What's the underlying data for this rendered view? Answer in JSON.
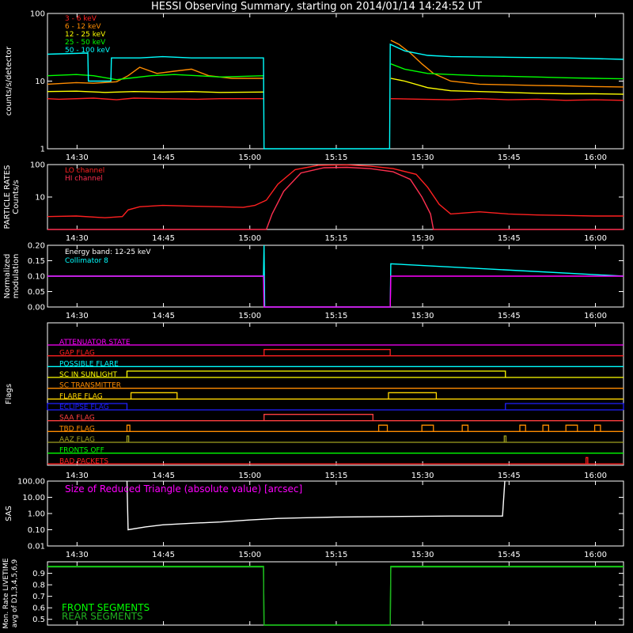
{
  "title": "HESSI Observing Summary, starting on 2014/01/14 14:24:52 UT",
  "time_axis": {
    "start_min": 0,
    "end_min": 100,
    "tick_minutes": [
      5.13,
      20.13,
      35.13,
      50.13,
      65.13,
      80.13,
      95.13
    ],
    "tick_labels": [
      "14:30",
      "14:45",
      "15:00",
      "15:15",
      "15:30",
      "15:45",
      "16:00"
    ]
  },
  "colors": {
    "red": "#ff2020",
    "orange": "#ff8c00",
    "yellow": "#ffff00",
    "green": "#00ff00",
    "cyan": "#00ffff",
    "magenta": "#ff00ff",
    "white": "#ffffff",
    "blue": "#2020ff",
    "gold": "#ffd700",
    "olive": "#a0a020",
    "darkred": "#ff4040",
    "crimson": "#ff3050",
    "darkgreen": "#20b020"
  },
  "chart_data": [
    {
      "id": "count_rates",
      "type": "line",
      "ylabel": "counts/s/detector",
      "yscale": "log",
      "ylim": [
        1,
        100
      ],
      "ytick_values": [
        1,
        10,
        100
      ],
      "ytick_labels": [
        "1",
        "10",
        "100"
      ],
      "series": [
        {
          "name": "3 - 6 keV",
          "color": "#ff2020",
          "points": [
            [
              0,
              5.5
            ],
            [
              2,
              5.4
            ],
            [
              8,
              5.6
            ],
            [
              12,
              5.3
            ],
            [
              15,
              5.6
            ],
            [
              20,
              5.5
            ],
            [
              26,
              5.4
            ],
            [
              30,
              5.5
            ],
            [
              37.6,
              5.5
            ],
            [
              37.7,
              null
            ],
            [
              59.5,
              null
            ],
            [
              59.6,
              5.5
            ],
            [
              65,
              5.4
            ],
            [
              70,
              5.3
            ],
            [
              75,
              5.5
            ],
            [
              80,
              5.3
            ],
            [
              85,
              5.4
            ],
            [
              90,
              5.2
            ],
            [
              95,
              5.3
            ],
            [
              100,
              5.2
            ]
          ]
        },
        {
          "name": "6 - 12 keV",
          "color": "#ff8c00",
          "points": [
            [
              0,
              9
            ],
            [
              5,
              9.5
            ],
            [
              8,
              9.3
            ],
            [
              12,
              9.8
            ],
            [
              14,
              12
            ],
            [
              16,
              16
            ],
            [
              19,
              13
            ],
            [
              22,
              14
            ],
            [
              25,
              15
            ],
            [
              28,
              12
            ],
            [
              32,
              11
            ],
            [
              37.6,
              11
            ],
            [
              37.7,
              null
            ],
            [
              59.5,
              null
            ],
            [
              59.6,
              40
            ],
            [
              61,
              35
            ],
            [
              63,
              26
            ],
            [
              65,
              18
            ],
            [
              67,
              13
            ],
            [
              70,
              10
            ],
            [
              75,
              9
            ],
            [
              80,
              8.8
            ],
            [
              85,
              8.6
            ],
            [
              90,
              8.5
            ],
            [
              95,
              8.3
            ],
            [
              100,
              8.2
            ]
          ]
        },
        {
          "name": "12 - 25 keV",
          "color": "#ffff00",
          "points": [
            [
              0,
              7
            ],
            [
              5,
              7.1
            ],
            [
              10,
              6.8
            ],
            [
              15,
              7
            ],
            [
              20,
              6.9
            ],
            [
              25,
              7
            ],
            [
              30,
              6.8
            ],
            [
              37.6,
              6.9
            ],
            [
              37.7,
              null
            ],
            [
              59.5,
              null
            ],
            [
              59.6,
              11
            ],
            [
              62,
              10
            ],
            [
              66,
              8
            ],
            [
              70,
              7.2
            ],
            [
              75,
              7
            ],
            [
              80,
              6.8
            ],
            [
              85,
              6.6
            ],
            [
              90,
              6.5
            ],
            [
              95,
              6.5
            ],
            [
              100,
              6.4
            ]
          ]
        },
        {
          "name": "25 - 50 keV",
          "color": "#00ff00",
          "points": [
            [
              0,
              12
            ],
            [
              5,
              12.5
            ],
            [
              8,
              12
            ],
            [
              12,
              10.5
            ],
            [
              14,
              11
            ],
            [
              18,
              12
            ],
            [
              22,
              12.5
            ],
            [
              26,
              12
            ],
            [
              30,
              11.5
            ],
            [
              37.6,
              12
            ],
            [
              37.7,
              null
            ],
            [
              59.5,
              null
            ],
            [
              59.6,
              18
            ],
            [
              62,
              15
            ],
            [
              66,
              13
            ],
            [
              70,
              12.5
            ],
            [
              75,
              12
            ],
            [
              80,
              11.8
            ],
            [
              85,
              11.5
            ],
            [
              90,
              11.2
            ],
            [
              95,
              11
            ],
            [
              100,
              10.8
            ]
          ]
        },
        {
          "name": "50 - 100 keV",
          "color": "#00ffff",
          "points": [
            [
              0,
              25
            ],
            [
              7,
              26
            ],
            [
              7.1,
              10
            ],
            [
              11,
              10
            ],
            [
              11.1,
              22
            ],
            [
              16,
              22
            ],
            [
              20,
              23
            ],
            [
              25,
              22
            ],
            [
              30,
              22
            ],
            [
              37.5,
              22
            ],
            [
              37.6,
              1
            ],
            [
              59.4,
              1
            ],
            [
              59.5,
              35
            ],
            [
              62,
              28
            ],
            [
              66,
              24
            ],
            [
              70,
              23
            ],
            [
              80,
              22.5
            ],
            [
              90,
              22
            ],
            [
              100,
              21
            ]
          ]
        }
      ]
    },
    {
      "id": "particle_rates",
      "type": "line",
      "ylabel": "PARTICLE RATES Counts/s",
      "yscale": "log",
      "ylim": [
        1,
        100
      ],
      "ytick_values": [
        10,
        100
      ],
      "ytick_labels": [
        "10",
        "100"
      ],
      "series": [
        {
          "name": "LO channel",
          "color": "#ff2020",
          "points": [
            [
              0,
              2.5
            ],
            [
              5,
              2.6
            ],
            [
              10,
              2.3
            ],
            [
              13,
              2.5
            ],
            [
              14,
              4
            ],
            [
              16,
              5
            ],
            [
              20,
              5.5
            ],
            [
              25,
              5.2
            ],
            [
              30,
              5
            ],
            [
              34,
              4.8
            ],
            [
              36,
              5.5
            ],
            [
              38,
              8
            ],
            [
              40,
              25
            ],
            [
              43,
              70
            ],
            [
              47,
              95
            ],
            [
              52,
              98
            ],
            [
              56,
              90
            ],
            [
              60,
              75
            ],
            [
              64,
              50
            ],
            [
              66,
              20
            ],
            [
              68,
              6
            ],
            [
              70,
              3
            ],
            [
              75,
              3.5
            ],
            [
              80,
              3
            ],
            [
              85,
              2.8
            ],
            [
              90,
              2.7
            ],
            [
              95,
              2.6
            ],
            [
              100,
              2.6
            ]
          ]
        },
        {
          "name": "HI channel",
          "color": "#ff3050",
          "points": [
            [
              0,
              1
            ],
            [
              10,
              1
            ],
            [
              30,
              1
            ],
            [
              38,
              1
            ],
            [
              39,
              3
            ],
            [
              41,
              15
            ],
            [
              44,
              55
            ],
            [
              48,
              80
            ],
            [
              52,
              82
            ],
            [
              56,
              75
            ],
            [
              60,
              60
            ],
            [
              63,
              35
            ],
            [
              65,
              10
            ],
            [
              66.5,
              3
            ],
            [
              67,
              1
            ],
            [
              100,
              1
            ]
          ]
        }
      ]
    },
    {
      "id": "modulation",
      "type": "line",
      "ylabel": "Normalized modulation",
      "ylim": [
        0,
        0.2
      ],
      "ytick_values": [
        0,
        0.05,
        0.1,
        0.15,
        0.2
      ],
      "ytick_labels": [
        "0.00",
        "0.05",
        "0.10",
        "0.15",
        "0.20"
      ],
      "annotations": [
        "Energy band: 12-25 keV",
        "Collimator 8"
      ],
      "series": [
        {
          "name": "Collimator 8",
          "color": "#00ffff",
          "points": [
            [
              0,
              0.1
            ],
            [
              37.5,
              0.1
            ],
            [
              37.6,
              0.2
            ],
            [
              37.7,
              0
            ],
            [
              59.5,
              0
            ],
            [
              59.6,
              0.14
            ],
            [
              100,
              0.1
            ]
          ]
        },
        {
          "name": "modulation",
          "color": "#ff00ff",
          "points": [
            [
              0,
              0.1
            ],
            [
              37.5,
              0.1
            ],
            [
              37.6,
              0
            ],
            [
              59.5,
              0
            ],
            [
              59.6,
              0.1
            ],
            [
              100,
              0.1
            ]
          ]
        }
      ]
    },
    {
      "id": "flags",
      "type": "line",
      "ylabel": "Flags",
      "flags": [
        {
          "name": "ATTENUATOR STATE",
          "color": "#ff00ff",
          "segments": []
        },
        {
          "name": "GAP FLAG",
          "color": "#ff2020",
          "segments": [
            [
              37.6,
              59.5
            ]
          ]
        },
        {
          "name": "POSSIBLE FLARE",
          "color": "#00ffff",
          "segments": []
        },
        {
          "name": "SC IN SUNLIGHT",
          "color": "#ffff00",
          "segments": [
            [
              13.8,
              79.5
            ]
          ]
        },
        {
          "name": "SC TRANSMITTER",
          "color": "#ff8c00",
          "segments": []
        },
        {
          "name": "FLARE FLAG",
          "color": "#ffd700",
          "segments": [
            [
              14.5,
              22.5
            ],
            [
              59.2,
              67.5
            ]
          ]
        },
        {
          "name": "ECLIPSE FLAG",
          "color": "#2020ff",
          "segments": [
            [
              0,
              13.8
            ],
            [
              79.5,
              100
            ]
          ]
        },
        {
          "name": "SAA FLAG",
          "color": "#ff4040",
          "segments": [
            [
              37.6,
              56.5
            ]
          ]
        },
        {
          "name": "TBD FLAG",
          "color": "#ff8c00",
          "segments": [
            [
              13.8,
              14.3
            ],
            [
              57.5,
              59
            ],
            [
              65,
              67
            ],
            [
              72,
              73
            ],
            [
              82,
              83
            ],
            [
              86,
              87
            ],
            [
              90,
              92
            ],
            [
              95,
              96
            ]
          ]
        },
        {
          "name": "AAZ FLAG",
          "color": "#a0a020",
          "segments": [
            [
              13.8,
              14.1
            ],
            [
              79.3,
              79.6
            ]
          ]
        },
        {
          "name": "FRONTS OFF",
          "color": "#00ff00",
          "segments": []
        },
        {
          "name": "BAD PACKETS",
          "color": "#ff2020",
          "segments": [
            [
              93.5,
              93.8
            ]
          ]
        }
      ]
    },
    {
      "id": "sas",
      "type": "line",
      "ylabel": "SAS",
      "yscale": "log",
      "ylim": [
        0.01,
        100
      ],
      "ytick_values": [
        0.01,
        0.1,
        1,
        10,
        100
      ],
      "ytick_labels": [
        "0.01",
        "0.10",
        "1.00",
        "10.00",
        "100.00"
      ],
      "annotations": [
        "Size of Reduced Triangle (absolute value) [arcsec]"
      ],
      "series": [
        {
          "name": "Size of Reduced Triangle",
          "color": "#ffffff",
          "points": [
            [
              13.8,
              100
            ],
            [
              14,
              0.1
            ],
            [
              17,
              0.15
            ],
            [
              20,
              0.2
            ],
            [
              25,
              0.25
            ],
            [
              30,
              0.3
            ],
            [
              35,
              0.4
            ],
            [
              40,
              0.5
            ],
            [
              45,
              0.55
            ],
            [
              50,
              0.6
            ],
            [
              60,
              0.65
            ],
            [
              70,
              0.7
            ],
            [
              79,
              0.7
            ],
            [
              79.4,
              100
            ]
          ]
        }
      ]
    },
    {
      "id": "livetime",
      "type": "line",
      "ylabel": "Mon. Rate LIVETIME avg of D1,3,4,5,6,9",
      "ylim": [
        0.45,
        1.0
      ],
      "ytick_values": [
        0.5,
        0.6,
        0.7,
        0.8,
        0.9
      ],
      "ytick_labels": [
        "0.5",
        "0.6",
        "0.7",
        "0.8",
        "0.9"
      ],
      "series": [
        {
          "name": "FRONT SEGMENTS",
          "color": "#00ff00",
          "points": [
            [
              0,
              0.96
            ],
            [
              37.5,
              0.96
            ],
            [
              37.6,
              0.45
            ],
            [
              59.5,
              0.45
            ],
            [
              59.6,
              0.96
            ],
            [
              100,
              0.96
            ]
          ]
        },
        {
          "name": "REAR SEGMENTS",
          "color": "#20b020",
          "points": [
            [
              0,
              0.955
            ],
            [
              37.5,
              0.955
            ],
            [
              37.6,
              0.45
            ],
            [
              59.5,
              0.45
            ],
            [
              59.6,
              0.955
            ],
            [
              100,
              0.955
            ]
          ]
        }
      ]
    }
  ]
}
